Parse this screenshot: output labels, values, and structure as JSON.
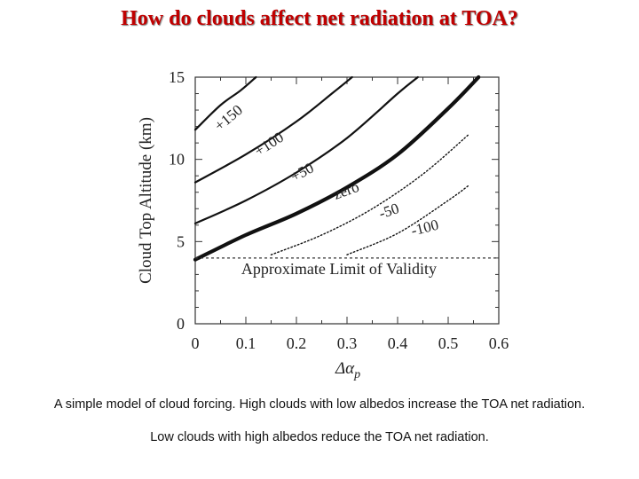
{
  "slide": {
    "title": "How do clouds affect net radiation at TOA?",
    "caption_line1": "A simple model of cloud forcing.  High clouds with low albedos increase the TOA net radiation.",
    "caption_line2": "Low clouds with high albedos reduce the TOA net radiation."
  },
  "chart_data": {
    "type": "line",
    "title": "",
    "xlabel": "Δα",
    "xlabel_subscript": "p",
    "ylabel": "Cloud Top Altitude (km)",
    "xlim": [
      0,
      0.6
    ],
    "ylim": [
      0,
      15
    ],
    "x_ticks": [
      "0",
      "0.1",
      "0.2",
      "0.3",
      "0.4",
      "0.5",
      "0.6"
    ],
    "y_ticks": [
      "0",
      "5",
      "10",
      "15"
    ],
    "grid": false,
    "limit_line": {
      "y": 4,
      "label": "Approximate Limit of Validity"
    },
    "series": [
      {
        "name": "+150",
        "style": "solid",
        "points": [
          [
            0,
            11.8
          ],
          [
            0.05,
            13.3
          ],
          [
            0.09,
            14.2
          ],
          [
            0.12,
            15.0
          ]
        ]
      },
      {
        "name": "+100",
        "style": "solid",
        "points": [
          [
            0,
            8.6
          ],
          [
            0.1,
            10.3
          ],
          [
            0.2,
            12.3
          ],
          [
            0.27,
            14.0
          ],
          [
            0.31,
            15.0
          ]
        ]
      },
      {
        "name": "+50",
        "style": "solid",
        "points": [
          [
            0,
            6.1
          ],
          [
            0.1,
            7.5
          ],
          [
            0.2,
            9.2
          ],
          [
            0.3,
            11.3
          ],
          [
            0.4,
            14.0
          ],
          [
            0.44,
            15.0
          ]
        ]
      },
      {
        "name": "zero",
        "style": "bold",
        "points": [
          [
            0,
            3.9
          ],
          [
            0.1,
            5.4
          ],
          [
            0.2,
            6.7
          ],
          [
            0.3,
            8.3
          ],
          [
            0.4,
            10.3
          ],
          [
            0.5,
            13.1
          ],
          [
            0.56,
            15.0
          ]
        ]
      },
      {
        "name": "-50",
        "style": "dotted",
        "points": [
          [
            0.15,
            4.2
          ],
          [
            0.25,
            5.4
          ],
          [
            0.35,
            7.0
          ],
          [
            0.45,
            9.1
          ],
          [
            0.54,
            11.5
          ]
        ]
      },
      {
        "name": "-100",
        "style": "dotted",
        "points": [
          [
            0.3,
            4.2
          ],
          [
            0.4,
            5.5
          ],
          [
            0.5,
            7.5
          ],
          [
            0.54,
            8.4
          ]
        ]
      }
    ]
  }
}
